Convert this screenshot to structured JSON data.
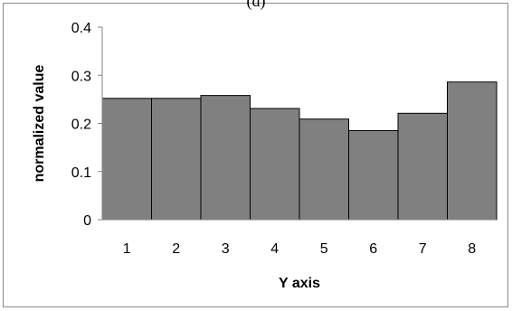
{
  "panel_label": "(d)",
  "chart_data": {
    "type": "bar",
    "title": "",
    "xlabel": "Y axis",
    "ylabel": "normalized value",
    "categories": [
      "1",
      "2",
      "3",
      "4",
      "5",
      "6",
      "7",
      "8"
    ],
    "values": [
      0.252,
      0.252,
      0.258,
      0.231,
      0.209,
      0.185,
      0.221,
      0.286
    ],
    "ylim": [
      0,
      0.4
    ],
    "yticks": [
      0,
      0.1,
      0.2,
      0.3,
      0.4
    ],
    "ytick_labels": [
      "0",
      "0.1",
      "0.2",
      "0.3",
      "0.4"
    ],
    "grid": false,
    "legend": "none",
    "bar_color": "#808080",
    "bar_edge_color": "#000000"
  }
}
